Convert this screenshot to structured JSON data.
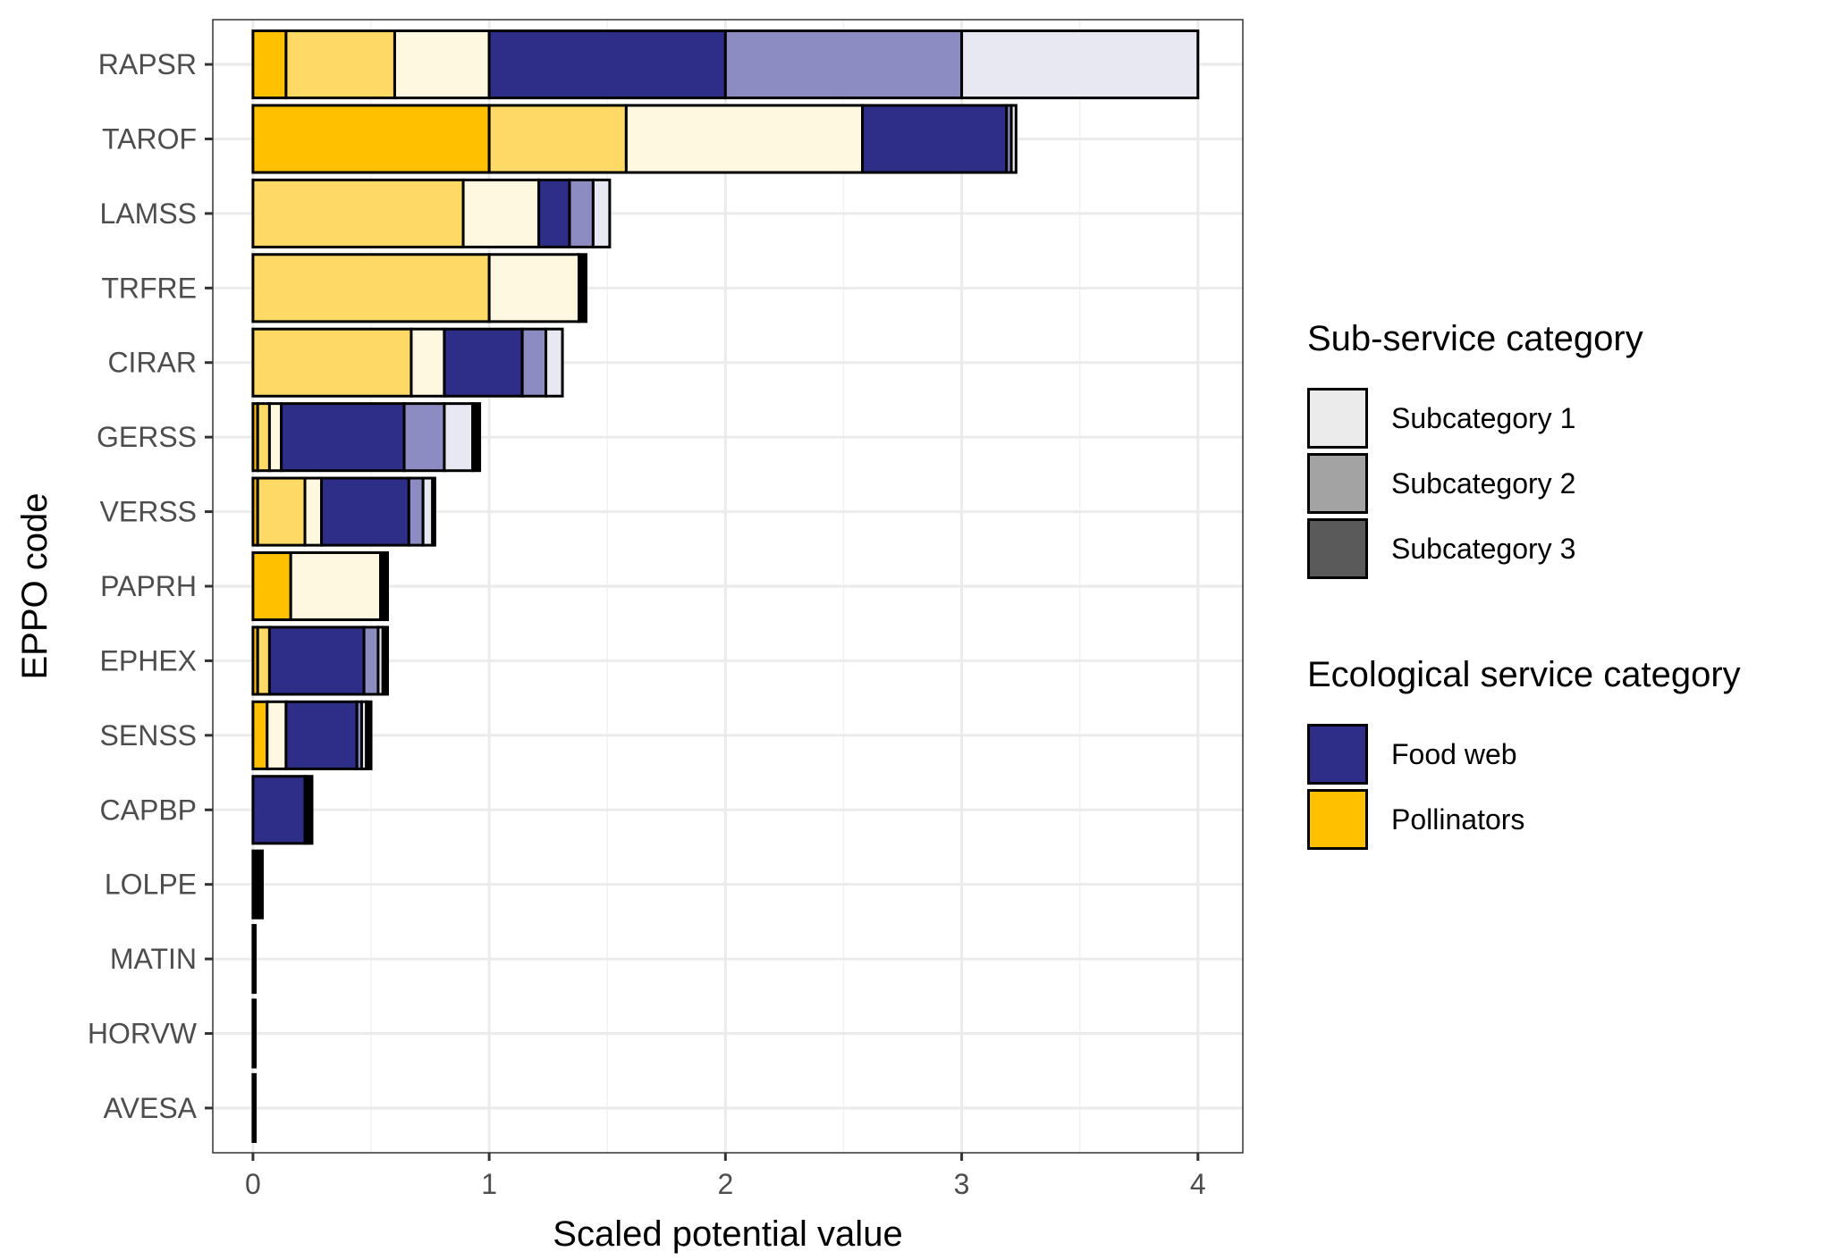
{
  "chart_data": {
    "type": "bar",
    "orientation": "horizontal",
    "stacked": true,
    "xlabel": "Scaled potential value",
    "ylabel": "EPPO code",
    "xlim": [
      -0.17,
      4.19
    ],
    "x_ticks": [
      "0",
      "1",
      "2",
      "3",
      "4"
    ],
    "x_tick_values": [
      0,
      1,
      2,
      3,
      4
    ],
    "grid": true,
    "legend_position": "right",
    "categories": [
      "RAPSR",
      "TAROF",
      "LAMSS",
      "TRFRE",
      "CIRAR",
      "GERSS",
      "VERSS",
      "PAPRH",
      "EPHEX",
      "SENSS",
      "CAPBP",
      "LOLPE",
      "MATIN",
      "HORVW",
      "AVESA"
    ],
    "series": [
      {
        "service": "Pollinators",
        "subcategory": "1",
        "color": "#FFC000",
        "values": [
          0.14,
          1.0,
          0.0,
          0.0,
          0.0,
          0.02,
          0.02,
          0.16,
          0.02,
          0.06,
          0.0,
          0.0,
          0.0,
          0.0,
          0.0
        ]
      },
      {
        "service": "Pollinators",
        "subcategory": "2",
        "color": "#FFD966",
        "values": [
          0.46,
          0.58,
          0.89,
          1.0,
          0.67,
          0.05,
          0.2,
          0.0,
          0.05,
          0.0,
          0.0,
          0.0,
          0.0,
          0.0,
          0.0
        ]
      },
      {
        "service": "Pollinators",
        "subcategory": "3",
        "color": "#FFF8E1",
        "values": [
          0.4,
          1.0,
          0.32,
          0.38,
          0.14,
          0.05,
          0.07,
          0.38,
          0.0,
          0.08,
          0.0,
          0.0,
          0.0,
          0.0,
          0.0
        ]
      },
      {
        "service": "Food web",
        "subcategory": "1",
        "color": "#2E2E88",
        "values": [
          1.0,
          0.61,
          0.13,
          0.0,
          0.33,
          0.52,
          0.37,
          0.0,
          0.4,
          0.3,
          0.22,
          0.0,
          0.0,
          0.0,
          0.0
        ]
      },
      {
        "service": "Food web",
        "subcategory": "2",
        "color": "#8C8CC2",
        "values": [
          1.0,
          0.02,
          0.1,
          0.0,
          0.1,
          0.17,
          0.06,
          0.0,
          0.06,
          0.02,
          0.0,
          0.0,
          0.0,
          0.0,
          0.0
        ]
      },
      {
        "service": "Food web",
        "subcategory": "3",
        "color": "#E8E8F2",
        "values": [
          1.0,
          0.02,
          0.07,
          0.0,
          0.07,
          0.12,
          0.04,
          0.0,
          0.02,
          0.02,
          0.0,
          0.0,
          0.0,
          0.0,
          0.0
        ]
      },
      {
        "service": "Other",
        "subcategory": "",
        "color": "#000000",
        "values": [
          0.0,
          0.0,
          0.0,
          0.03,
          0.0,
          0.03,
          0.01,
          0.03,
          0.02,
          0.02,
          0.03,
          0.04,
          0.01,
          0.01,
          0.01
        ]
      }
    ],
    "legend": [
      {
        "title": "Sub-service category",
        "items": [
          {
            "label": "Subcategory  1",
            "color": "#EBEBEB"
          },
          {
            "label": "Subcategory  2",
            "color": "#A3A3A3"
          },
          {
            "label": "Subcategory  3",
            "color": "#5A5A5A"
          }
        ]
      },
      {
        "title": "Ecological service category",
        "items": [
          {
            "label": "Food web",
            "color": "#2E2E88"
          },
          {
            "label": "Pollinators",
            "color": "#FFC000"
          }
        ]
      }
    ]
  }
}
